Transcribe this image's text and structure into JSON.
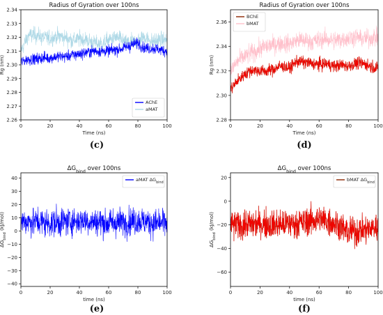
{
  "chart_data": [
    {
      "type": "line",
      "title": "Radius of Gyration over 100ns",
      "panel_label": "(c)",
      "xlabel": "Time (ns)",
      "ylabel": "Rg (nm)",
      "xlim": [
        0,
        100
      ],
      "ylim": [
        2.26,
        2.34
      ],
      "xticks": [
        0,
        20,
        40,
        60,
        80,
        100
      ],
      "yticks": [
        2.26,
        2.27,
        2.28,
        2.29,
        2.3,
        2.31,
        2.32,
        2.33,
        2.34
      ],
      "ytick_labels": [
        "2.26",
        "2.27",
        "2.28",
        "2.29",
        "2.30",
        "2.31",
        "2.32",
        "2.33",
        "2.34"
      ],
      "legend": "bottom-right",
      "series": [
        {
          "name": "aMAT",
          "color": "#add8e6",
          "x": [
            0,
            5,
            10,
            15,
            20,
            25,
            30,
            35,
            40,
            45,
            50,
            55,
            60,
            65,
            70,
            75,
            80,
            85,
            90,
            95,
            100
          ],
          "values": [
            2.31,
            2.321,
            2.322,
            2.32,
            2.319,
            2.321,
            2.32,
            2.318,
            2.319,
            2.318,
            2.316,
            2.315,
            2.318,
            2.32,
            2.317,
            2.316,
            2.318,
            2.32,
            2.317,
            2.318,
            2.318
          ],
          "spread": 0.007
        },
        {
          "name": "AChE",
          "color": "#0000ff",
          "x": [
            0,
            5,
            10,
            15,
            20,
            25,
            30,
            35,
            40,
            45,
            50,
            55,
            60,
            65,
            70,
            75,
            80,
            85,
            90,
            95,
            100
          ],
          "values": [
            2.302,
            2.304,
            2.304,
            2.305,
            2.305,
            2.306,
            2.306,
            2.307,
            2.308,
            2.309,
            2.31,
            2.31,
            2.31,
            2.311,
            2.312,
            2.314,
            2.316,
            2.312,
            2.312,
            2.311,
            2.31
          ],
          "spread": 0.005
        }
      ]
    },
    {
      "type": "line",
      "title": "Radius of Gyration over 100ns",
      "panel_label": "(d)",
      "xlabel": "Time (ns)",
      "ylabel": "Rg (nm)",
      "xlim": [
        0,
        100
      ],
      "ylim": [
        2.28,
        2.37
      ],
      "xticks": [
        0,
        20,
        40,
        60,
        80,
        100
      ],
      "yticks": [
        2.28,
        2.3,
        2.32,
        2.34,
        2.36
      ],
      "ytick_labels": [
        "2.28",
        "2.30",
        "2.32",
        "2.34",
        "2.36"
      ],
      "legend": "top-left",
      "series": [
        {
          "name": "bMAT",
          "color": "#ffc0cb",
          "x": [
            0,
            5,
            10,
            15,
            20,
            25,
            30,
            35,
            40,
            45,
            50,
            55,
            60,
            65,
            70,
            75,
            80,
            85,
            90,
            95,
            100
          ],
          "values": [
            2.32,
            2.328,
            2.332,
            2.335,
            2.338,
            2.34,
            2.342,
            2.343,
            2.342,
            2.345,
            2.345,
            2.344,
            2.345,
            2.346,
            2.345,
            2.346,
            2.347,
            2.348,
            2.346,
            2.347,
            2.348
          ],
          "spread": 0.009
        },
        {
          "name": "BChE",
          "color": "#8b2500",
          "fill_color": "#ff0000",
          "x": [
            0,
            5,
            10,
            15,
            20,
            25,
            30,
            35,
            40,
            45,
            50,
            55,
            60,
            65,
            70,
            75,
            80,
            85,
            90,
            95,
            100
          ],
          "values": [
            2.305,
            2.312,
            2.318,
            2.321,
            2.32,
            2.32,
            2.322,
            2.324,
            2.322,
            2.328,
            2.327,
            2.326,
            2.325,
            2.326,
            2.324,
            2.325,
            2.324,
            2.326,
            2.326,
            2.324,
            2.322
          ],
          "spread": 0.006
        }
      ]
    },
    {
      "type": "line",
      "title": "ΔG",
      "title_sub": "bind",
      "title_after": " over 100ns",
      "panel_label": "(e)",
      "xlabel": "time (ns)",
      "ylabel": "ΔG",
      "ylabel_sub": "bind",
      "ylabel_after": " (kJ/mol)",
      "xlim": [
        0,
        100
      ],
      "ylim": [
        -42,
        44
      ],
      "xticks": [
        0,
        20,
        40,
        60,
        80,
        100
      ],
      "yticks": [
        -40,
        -30,
        -20,
        -10,
        0,
        10,
        20,
        30,
        40
      ],
      "ytick_labels": [
        "−40",
        "−30",
        "−20",
        "−10",
        "0",
        "10",
        "20",
        "30",
        "40"
      ],
      "legend": "top-right",
      "series": [
        {
          "name": "aMAT ΔG",
          "name_sub": "bind",
          "color": "#0000ff",
          "x": [
            0,
            10,
            20,
            30,
            40,
            50,
            60,
            70,
            80,
            90,
            100
          ],
          "values": [
            7,
            7,
            6,
            7,
            8,
            7,
            6,
            7,
            8,
            6,
            6
          ],
          "spread": 13
        }
      ]
    },
    {
      "type": "line",
      "title": "ΔG",
      "title_sub": "bind",
      "title_after": " over 100ns",
      "panel_label": "(f)",
      "xlabel": "time (ns)",
      "ylabel": "ΔG",
      "ylabel_sub": "bind",
      "ylabel_after": " (kJ/mol)",
      "xlim": [
        0,
        100
      ],
      "ylim": [
        -72,
        24
      ],
      "xticks": [
        0,
        20,
        40,
        60,
        80,
        100
      ],
      "yticks": [
        -60,
        -40,
        -20,
        0,
        20
      ],
      "ytick_labels": [
        "−60",
        "−40",
        "−20",
        "0",
        "20"
      ],
      "legend": "top-right",
      "series": [
        {
          "name": "bMAT ΔG",
          "name_sub": "bind",
          "color": "#8b2500",
          "fill_color": "#ff0000",
          "x": [
            0,
            10,
            20,
            30,
            40,
            50,
            60,
            70,
            80,
            90,
            100
          ],
          "values": [
            -20,
            -20,
            -19,
            -20,
            -19,
            -18,
            -15,
            -18,
            -26,
            -24,
            -22
          ],
          "spread": 15
        }
      ]
    }
  ]
}
